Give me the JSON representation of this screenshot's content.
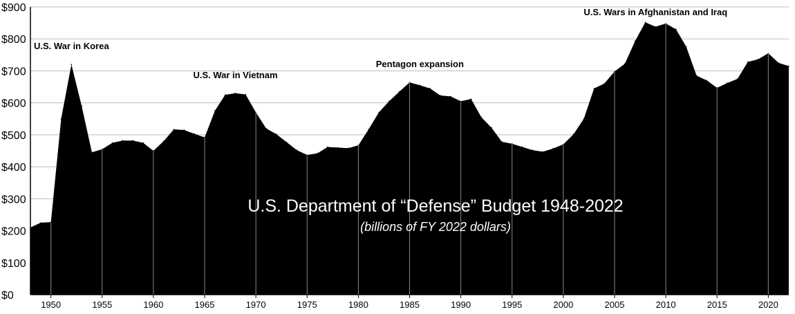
{
  "chart_data": {
    "type": "area",
    "title": "U.S. Department of “Defense” Budget 1948-2022",
    "subtitle": "(billions of FY 2022 dollars)",
    "xlabel": "",
    "ylabel": "",
    "xlim": [
      1948,
      2022
    ],
    "ylim": [
      0,
      900
    ],
    "grid": true,
    "x": [
      1948,
      1949,
      1950,
      1951,
      1952,
      1953,
      1954,
      1955,
      1956,
      1957,
      1958,
      1959,
      1960,
      1961,
      1962,
      1963,
      1964,
      1965,
      1966,
      1967,
      1968,
      1969,
      1970,
      1971,
      1972,
      1973,
      1974,
      1975,
      1976,
      1977,
      1978,
      1979,
      1980,
      1981,
      1982,
      1983,
      1984,
      1985,
      1986,
      1987,
      1988,
      1989,
      1990,
      1991,
      1992,
      1993,
      1994,
      1995,
      1996,
      1997,
      1998,
      1999,
      2000,
      2001,
      2002,
      2003,
      2004,
      2005,
      2006,
      2007,
      2008,
      2009,
      2010,
      2011,
      2012,
      2013,
      2014,
      2015,
      2016,
      2017,
      2018,
      2019,
      2020,
      2021,
      2022
    ],
    "series": [
      {
        "values": [
          210,
          225,
          227,
          550,
          720,
          590,
          445,
          455,
          475,
          482,
          482,
          475,
          450,
          480,
          517,
          515,
          503,
          492,
          575,
          625,
          630,
          626,
          570,
          520,
          502,
          477,
          452,
          437,
          442,
          462,
          460,
          458,
          467,
          517,
          570,
          605,
          635,
          664,
          655,
          645,
          623,
          620,
          605,
          612,
          555,
          522,
          478,
          472,
          462,
          452,
          447,
          457,
          470,
          502,
          550,
          645,
          660,
          698,
          722,
          793,
          852,
          838,
          848,
          830,
          775,
          685,
          670,
          647,
          662,
          675,
          728,
          736,
          755,
          725,
          715
        ]
      }
    ],
    "yticks": [
      "$0",
      "$100",
      "$200",
      "$300",
      "$400",
      "$500",
      "$600",
      "$700",
      "$800",
      "$900"
    ],
    "xticks": [
      "1950",
      "1955",
      "1960",
      "1965",
      "1970",
      "1975",
      "1980",
      "1985",
      "1990",
      "1995",
      "2000",
      "2005",
      "2010",
      "2015",
      "2020"
    ],
    "annotations": [
      {
        "text": "U.S. War in Korea",
        "year": 1952
      },
      {
        "text": "U.S. War in Vietnam",
        "year": 1968
      },
      {
        "text": "Pentagon expansion",
        "year": 1986
      },
      {
        "text": "U.S. Wars in Afghanistan and Iraq",
        "year": 2009
      }
    ],
    "colors": {
      "fill": "#000000",
      "grid": "#bbbbbb",
      "background": "#ffffff",
      "title_text": "#ffffff"
    }
  }
}
